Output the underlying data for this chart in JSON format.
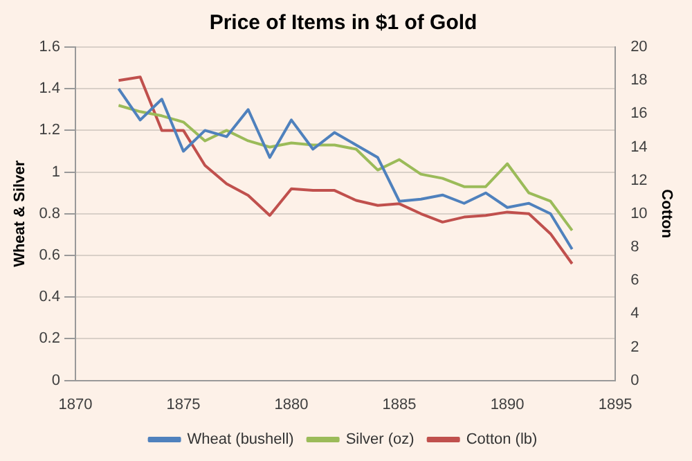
{
  "chart_data": {
    "type": "line",
    "title": "Price of Items in $1 of Gold",
    "ylabel": "Wheat & Silver",
    "y2label": "Cotton",
    "x": [
      1872,
      1873,
      1874,
      1875,
      1876,
      1877,
      1878,
      1879,
      1880,
      1881,
      1882,
      1883,
      1884,
      1885,
      1886,
      1887,
      1888,
      1889,
      1890,
      1891,
      1892,
      1893
    ],
    "series": [
      {
        "name": "Wheat (bushell)",
        "color": "#4f81bd",
        "values": [
          1.4,
          1.25,
          1.35,
          1.1,
          1.2,
          1.17,
          1.3,
          1.07,
          1.25,
          1.11,
          1.19,
          1.13,
          1.07,
          0.86,
          0.87,
          0.89,
          0.85,
          0.9,
          0.83,
          0.85,
          0.8,
          0.63
        ]
      },
      {
        "name": "Silver (oz)",
        "color": "#9bbb59",
        "values": [
          1.32,
          1.29,
          1.27,
          1.24,
          1.15,
          1.2,
          1.15,
          1.12,
          1.14,
          1.13,
          1.13,
          1.11,
          1.01,
          1.06,
          0.99,
          0.97,
          0.93,
          0.93,
          1.04,
          0.9,
          0.86,
          0.72
        ]
      },
      {
        "name": "Cotton (lb)",
        "color": "#c0504d",
        "axis": "y2",
        "values": [
          18.0,
          18.2,
          15.0,
          15.0,
          12.9,
          11.8,
          11.1,
          9.9,
          11.5,
          11.4,
          11.4,
          10.8,
          10.5,
          10.6,
          10.0,
          9.5,
          9.8,
          9.9,
          10.1,
          10.0,
          8.8,
          7.0
        ]
      }
    ],
    "xlim": [
      1870,
      1895
    ],
    "xticks": [
      1870,
      1875,
      1880,
      1885,
      1890,
      1895
    ],
    "ylim": [
      0,
      1.6
    ],
    "yticks": [
      0,
      {
        "value": 0.2,
        "label": "0.2"
      },
      {
        "value": 0.4,
        "label": "0.4"
      },
      {
        "value": 0.6,
        "label": "0.6"
      },
      {
        "value": 0.8,
        "label": "0.8"
      },
      1,
      {
        "value": 1.2,
        "label": "1.2"
      },
      {
        "value": 1.4,
        "label": "1.4"
      },
      {
        "value": 1.6,
        "label": "1.6"
      }
    ],
    "y2lim": [
      0,
      20
    ],
    "y2ticks": [
      0,
      2,
      4,
      6,
      8,
      10,
      12,
      14,
      16,
      18,
      20
    ],
    "grid": "y",
    "legend": "bottom",
    "marker": "none",
    "line_style": "solid"
  }
}
